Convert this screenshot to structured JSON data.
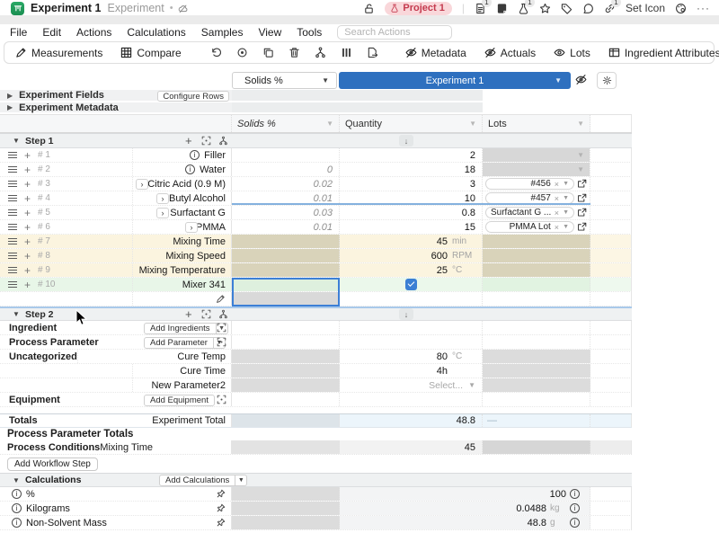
{
  "titlebar": {
    "title": "Experiment 1",
    "subtitle": "Experiment",
    "dot": "•",
    "project_badge": "Project 1",
    "set_icon": "Set Icon",
    "more": "···",
    "badge_doc": "1",
    "badge_flask": "1",
    "badge_link": "1"
  },
  "menubar": {
    "items": [
      "File",
      "Edit",
      "Actions",
      "Calculations",
      "Samples",
      "View",
      "Tools"
    ],
    "search_placeholder": "Search Actions"
  },
  "toolbar": {
    "measurements": "Measurements",
    "compare": "Compare",
    "views": [
      "Metadata",
      "Actuals",
      "Lots",
      "Ingredient Attributes"
    ],
    "more": "···"
  },
  "selector": {
    "column_picker": "Solids %",
    "experiment": "Experiment 1"
  },
  "panel": {
    "experiment_fields": "Experiment Fields",
    "configure_rows": "Configure Rows",
    "experiment_metadata": "Experiment Metadata"
  },
  "grid": {
    "columns": [
      "Solids %",
      "Quantity",
      "Lots"
    ]
  },
  "step1": {
    "title": "Step 1",
    "rows": [
      {
        "num": "# 1",
        "name": "Filler",
        "icon": "info",
        "solids": "",
        "qty": "2",
        "unit": "",
        "lot": "disabled",
        "bg": "white"
      },
      {
        "num": "# 2",
        "name": "Water",
        "icon": "info",
        "solids": "0",
        "qty": "18",
        "unit": "",
        "lot": "disabled",
        "bg": "white"
      },
      {
        "num": "# 3",
        "name": "Citric Acid (0.9 M)",
        "icon": "expand",
        "indent": 0,
        "solids": "0.02",
        "qty": "3",
        "unit": "",
        "lot": "#456",
        "bg": "white"
      },
      {
        "num": "# 4",
        "name": "Butyl Alcohol",
        "icon": "expand",
        "indent": 1,
        "solids": "0.01",
        "qty": "10",
        "unit": "",
        "lot": "#457",
        "bg": "white"
      },
      {
        "num": "# 5",
        "name": "Surfactant G",
        "icon": "expand",
        "indent": 1,
        "solids": "0.03",
        "qty": "0.8",
        "unit": "",
        "lot": "Surfactant G ...",
        "bg": "white"
      },
      {
        "num": "# 6",
        "name": "PMMA",
        "icon": "expand",
        "indent": 2,
        "solids": "0.01",
        "qty": "15",
        "unit": "",
        "lot": "PMMA Lot",
        "bg": "white"
      },
      {
        "num": "# 7",
        "name": "Mixing Time",
        "solids": "",
        "qty": "45",
        "unit": "min",
        "lot": "param",
        "bg": "tan"
      },
      {
        "num": "# 8",
        "name": "Mixing Speed",
        "solids": "",
        "qty": "600",
        "unit": "RPM",
        "lot": "param",
        "bg": "tan"
      },
      {
        "num": "# 9",
        "name": "Mixing Temperature",
        "solids": "",
        "qty": "25",
        "unit": "°C",
        "lot": "param",
        "bg": "tan"
      },
      {
        "num": "# 10",
        "name": "Mixer 341",
        "solids": "",
        "qty": "checkbox",
        "unit": "",
        "lot": "equip",
        "bg": "green"
      }
    ]
  },
  "step2": {
    "title": "Step 2",
    "rows": [
      {
        "type": "action",
        "label": "Ingredient",
        "button": "Add Ingredients",
        "split": true
      },
      {
        "type": "action",
        "label": "Process Parameter",
        "button": "Add Parameter",
        "split": true
      },
      {
        "type": "param",
        "label": "Uncategorized",
        "name": "Cure Temp",
        "qty": "80",
        "unit": "°C"
      },
      {
        "type": "param",
        "label": "",
        "name": "Cure Time",
        "qty": "4h",
        "unit": ""
      },
      {
        "type": "param",
        "label": "",
        "name": "New Parameter2",
        "qty": "Select...",
        "placeholder": true
      },
      {
        "type": "action",
        "label": "Equipment",
        "button": "Add Equipment",
        "split": false
      }
    ]
  },
  "totals": {
    "label": "Totals",
    "name": "Experiment Total",
    "value": "48.8",
    "dash": "—"
  },
  "process_totals": {
    "header": "Process Parameter Totals",
    "category": "Process Conditions",
    "name": "Mixing Time",
    "value": "45"
  },
  "add_workflow_step": "Add Workflow Step",
  "calculations": {
    "title": "Calculations",
    "add_button": "Add Calculations",
    "rows": [
      {
        "name": "%",
        "value": "100",
        "unit": ""
      },
      {
        "name": "Kilograms",
        "value": "0.0488",
        "unit": "kg"
      },
      {
        "name": "Non-Solvent Mass",
        "value": "48.8",
        "unit": "g"
      }
    ]
  },
  "colors": {
    "accent_blue": "#2e70bf",
    "selection_blue": "#3c7fd6",
    "project_pink": "#f9d7da",
    "project_red": "#c43a4e",
    "tan_row": "#fbf4df",
    "tan_cell": "#d9d3ba",
    "green_row": "#e8f6e8",
    "disabled_grey": "#d7d7d7",
    "totals_blue": "#ecf5fb",
    "app_green": "#1f9a58"
  }
}
